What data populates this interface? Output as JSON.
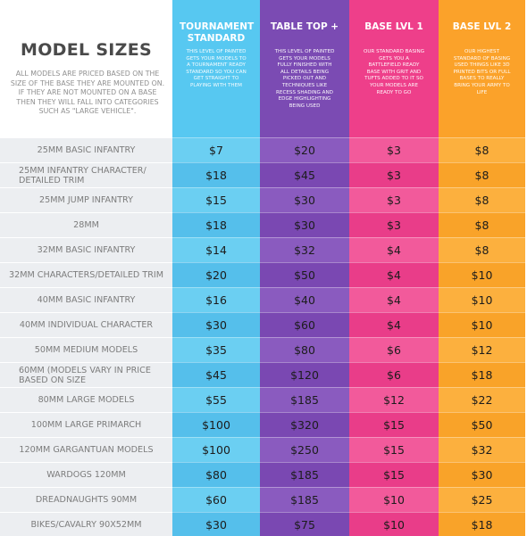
{
  "title": "MODEL SIZES",
  "intro": "ALL MODELS ARE PRICED BASED ON THE SIZE OF THE BASE THEY ARE MOUNTED ON. IF THEY ARE NOT MOUNTED ON A BASE THEN THEY WILL FALL INTO CATEGORIES SUCH AS \"LARGE VEHICLE\".",
  "columns": [
    {
      "title": "TOURNAMENT STANDARD",
      "description": "THIS LEVEL OF PAINTED GETS YOUR MODELS TO A TOURNAMENT READY STANDARD SO YOU CAN GET STRAIGHT TO PLAYING WITH THEM",
      "header_color": "#57c8f1",
      "body_color": "#6bcff2",
      "alt_color": "#55bfeb"
    },
    {
      "title": "TABLE TOP +",
      "description": "THIS LEVEL OF PAINTED GETS YOUR MODELS FULLY FINISHED WITH ALL DETAILS BEING PICKED OUT AND TECHNIQUES LIKE RECESS SHADING AND EDGE HIGHLIGHTING BEING USED",
      "header_color": "#7b4bb3",
      "body_color": "#8a5bbf",
      "alt_color": "#7a48b2"
    },
    {
      "title": "BASE LVL 1",
      "description": "OUR STANDARD BASING GETS YOU A BATTLEFIELD READY BASE WITH GRIT AND TUFTS ADDED TO IT SO YOUR MODELS ARE READY TO GO",
      "header_color": "#ee3f8a",
      "body_color": "#f25a9b",
      "alt_color": "#e93d89"
    },
    {
      "title": "BASE LVL 2",
      "description": "OUR HIGHEST STANDARD OF BASING USED THINGS LIKE 3D PRINTED BITS OR FULL BASES TO REALLY BRING YOUR ARMY TO LIFE",
      "header_color": "#fba22a",
      "body_color": "#fcb03e",
      "alt_color": "#f9a329"
    }
  ],
  "rows": [
    {
      "label": "25MM BASIC INFANTRY",
      "prices": [
        "$7",
        "$20",
        "$3",
        "$8"
      ]
    },
    {
      "label": "25MM INFANTRY CHARACTER/ DETAILED TRIM",
      "prices": [
        "$18",
        "$45",
        "$3",
        "$8"
      ]
    },
    {
      "label": "25MM JUMP INFANTRY",
      "prices": [
        "$15",
        "$30",
        "$3",
        "$8"
      ]
    },
    {
      "label": "28MM",
      "prices": [
        "$18",
        "$30",
        "$3",
        "$8"
      ]
    },
    {
      "label": "32MM BASIC INFANTRY",
      "prices": [
        "$14",
        "$32",
        "$4",
        "$8"
      ]
    },
    {
      "label": "32MM CHARACTERS/DETAILED TRIM",
      "prices": [
        "$20",
        "$50",
        "$4",
        "$10"
      ]
    },
    {
      "label": "40MM BASIC INFANTRY",
      "prices": [
        "$16",
        "$40",
        "$4",
        "$10"
      ]
    },
    {
      "label": "40MM INDIVIDUAL CHARACTER",
      "prices": [
        "$30",
        "$60",
        "$4",
        "$10"
      ]
    },
    {
      "label": "50MM MEDIUM MODELS",
      "prices": [
        "$35",
        "$80",
        "$6",
        "$12"
      ]
    },
    {
      "label": "60MM (MODELS VARY IN PRICE BASED ON SIZE",
      "prices": [
        "$45",
        "$120",
        "$6",
        "$18"
      ]
    },
    {
      "label": "80MM LARGE MODELS",
      "prices": [
        "$55",
        "$185",
        "$12",
        "$22"
      ]
    },
    {
      "label": "100MM LARGE PRIMARCH",
      "prices": [
        "$100",
        "$320",
        "$15",
        "$50"
      ]
    },
    {
      "label": "120MM GARGANTUAN MODELS",
      "prices": [
        "$100",
        "$250",
        "$15",
        "$32"
      ]
    },
    {
      "label": "WARDOGS 120MM",
      "prices": [
        "$80",
        "$185",
        "$15",
        "$30"
      ]
    },
    {
      "label": "DREADNAUGHTS 90MM",
      "prices": [
        "$60",
        "$185",
        "$10",
        "$25"
      ]
    },
    {
      "label": "BIKES/CAVALRY 90X52MM",
      "prices": [
        "$30",
        "$75",
        "$10",
        "$18"
      ]
    }
  ]
}
